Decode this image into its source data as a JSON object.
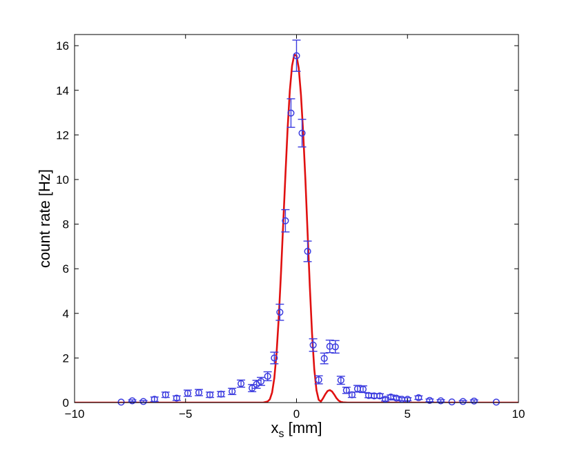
{
  "chart_data": {
    "type": "scatter",
    "title": "",
    "xlabel": "x",
    "xlabel_subscript": "s",
    "xlabel_unit": " [mm]",
    "ylabel": "count rate [Hz]",
    "xlim": [
      -10,
      10
    ],
    "ylim": [
      0,
      16.5
    ],
    "xticks": [
      -10,
      -5,
      0,
      5,
      10
    ],
    "xtick_labels": [
      "−10",
      "−5",
      "0",
      "5",
      "10"
    ],
    "yticks": [
      0,
      2,
      4,
      6,
      8,
      10,
      12,
      14,
      16
    ],
    "ytick_labels": [
      "0",
      "2",
      "4",
      "6",
      "8",
      "10",
      "12",
      "14",
      "16"
    ],
    "grid": false,
    "legend": "none",
    "series": [
      {
        "kind": "points_with_error_bars",
        "color": "#3a3adf",
        "marker": "circle",
        "points": [
          {
            "x": -7.9,
            "y": 0.02,
            "err": 0.03
          },
          {
            "x": -7.4,
            "y": 0.08,
            "err": 0.04
          },
          {
            "x": -6.9,
            "y": 0.05,
            "err": 0.04
          },
          {
            "x": -6.4,
            "y": 0.15,
            "err": 0.1
          },
          {
            "x": -5.9,
            "y": 0.35,
            "err": 0.12
          },
          {
            "x": -5.4,
            "y": 0.2,
            "err": 0.1
          },
          {
            "x": -4.9,
            "y": 0.42,
            "err": 0.14
          },
          {
            "x": -4.4,
            "y": 0.45,
            "err": 0.14
          },
          {
            "x": -3.9,
            "y": 0.35,
            "err": 0.12
          },
          {
            "x": -3.4,
            "y": 0.38,
            "err": 0.12
          },
          {
            "x": -2.9,
            "y": 0.5,
            "err": 0.14
          },
          {
            "x": -2.5,
            "y": 0.85,
            "err": 0.16
          },
          {
            "x": -2.0,
            "y": 0.65,
            "err": 0.16
          },
          {
            "x": -1.8,
            "y": 0.82,
            "err": 0.18
          },
          {
            "x": -1.6,
            "y": 0.95,
            "err": 0.18
          },
          {
            "x": -1.3,
            "y": 1.18,
            "err": 0.2
          },
          {
            "x": -1.0,
            "y": 2.0,
            "err": 0.26
          },
          {
            "x": -0.75,
            "y": 4.05,
            "err": 0.36
          },
          {
            "x": -0.5,
            "y": 8.15,
            "err": 0.5
          },
          {
            "x": -0.25,
            "y": 12.98,
            "err": 0.64
          },
          {
            "x": 0.0,
            "y": 15.55,
            "err": 0.7
          },
          {
            "x": 0.25,
            "y": 12.08,
            "err": 0.62
          },
          {
            "x": 0.5,
            "y": 6.78,
            "err": 0.46
          },
          {
            "x": 0.75,
            "y": 2.58,
            "err": 0.28
          },
          {
            "x": 1.0,
            "y": 1.02,
            "err": 0.18
          },
          {
            "x": 1.25,
            "y": 1.98,
            "err": 0.24
          },
          {
            "x": 1.5,
            "y": 2.52,
            "err": 0.28
          },
          {
            "x": 1.75,
            "y": 2.5,
            "err": 0.28
          },
          {
            "x": 2.0,
            "y": 1.0,
            "err": 0.18
          },
          {
            "x": 2.25,
            "y": 0.55,
            "err": 0.14
          },
          {
            "x": 2.5,
            "y": 0.35,
            "err": 0.12
          },
          {
            "x": 2.75,
            "y": 0.62,
            "err": 0.15
          },
          {
            "x": 3.0,
            "y": 0.6,
            "err": 0.15
          },
          {
            "x": 3.25,
            "y": 0.32,
            "err": 0.1
          },
          {
            "x": 3.5,
            "y": 0.3,
            "err": 0.1
          },
          {
            "x": 3.75,
            "y": 0.3,
            "err": 0.1
          },
          {
            "x": 4.0,
            "y": 0.15,
            "err": 0.08
          },
          {
            "x": 4.25,
            "y": 0.25,
            "err": 0.09
          },
          {
            "x": 4.5,
            "y": 0.2,
            "err": 0.08
          },
          {
            "x": 4.75,
            "y": 0.15,
            "err": 0.07
          },
          {
            "x": 5.0,
            "y": 0.15,
            "err": 0.07
          },
          {
            "x": 5.5,
            "y": 0.22,
            "err": 0.08
          },
          {
            "x": 6.0,
            "y": 0.1,
            "err": 0.06
          },
          {
            "x": 6.5,
            "y": 0.08,
            "err": 0.05
          },
          {
            "x": 7.0,
            "y": 0.03,
            "err": 0.03
          },
          {
            "x": 7.5,
            "y": 0.05,
            "err": 0.04
          },
          {
            "x": 8.0,
            "y": 0.07,
            "err": 0.05
          },
          {
            "x": 9.0,
            "y": 0.02,
            "err": 0.03
          }
        ]
      },
      {
        "kind": "model_curve",
        "color": "#e01010",
        "x": [
          -10,
          -1.5,
          -1.3,
          -1.2,
          -1.1,
          -1.0,
          -0.9,
          -0.8,
          -0.7,
          -0.6,
          -0.5,
          -0.4,
          -0.3,
          -0.2,
          -0.1,
          0.0,
          0.1,
          0.2,
          0.3,
          0.4,
          0.5,
          0.6,
          0.7,
          0.8,
          0.9,
          1.0,
          1.1,
          1.2,
          1.3,
          1.4,
          1.5,
          1.6,
          1.7,
          1.8,
          1.9,
          2.0,
          2.1,
          2.3,
          10
        ],
        "y": [
          0,
          0,
          0.05,
          0.15,
          0.45,
          1.1,
          2.2,
          3.8,
          5.8,
          8.0,
          10.2,
          12.3,
          14.0,
          15.1,
          15.6,
          15.55,
          15.0,
          13.8,
          12.1,
          10.0,
          7.6,
          5.2,
          3.1,
          1.5,
          0.55,
          0.12,
          0.05,
          0.2,
          0.38,
          0.52,
          0.56,
          0.5,
          0.36,
          0.2,
          0.09,
          0.03,
          0.01,
          0,
          0
        ]
      }
    ]
  }
}
